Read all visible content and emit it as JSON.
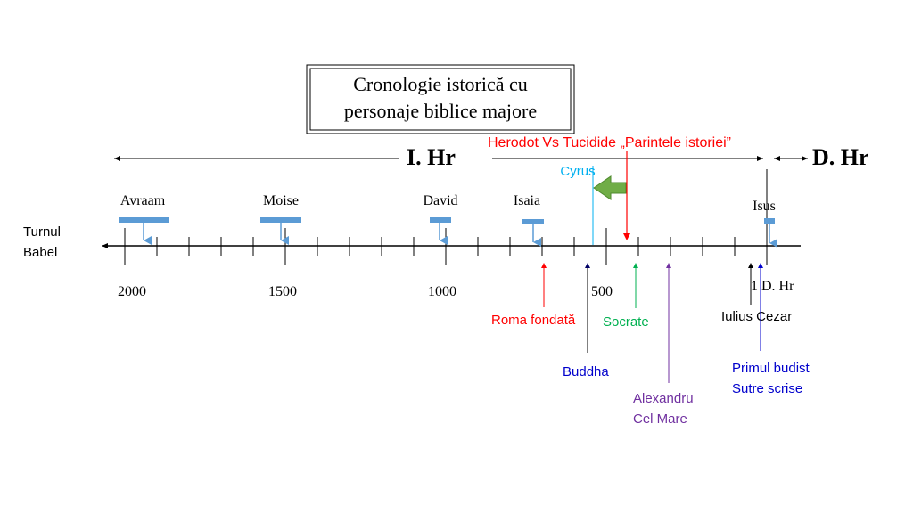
{
  "title": {
    "line1": "Cronologie istorică cu",
    "line2": "personaje biblice majore"
  },
  "era": {
    "bc": "I.   Hr",
    "ad": "D. Hr",
    "herodot": "Herodot Vs Tucidide „Parintele istoriei”"
  },
  "left_label": {
    "line1": "Turnul",
    "line2": "Babel"
  },
  "ticks": {
    "t2000": "2000",
    "t1500": "1500",
    "t1000": "1000",
    "t500": "500",
    "t1": "1 D. Hr"
  },
  "figures": {
    "avraam": "Avraam",
    "moise": "Moise",
    "david": "David",
    "isaia": "Isaia",
    "isus": "Isus"
  },
  "events": {
    "cyrus": "Cyrus",
    "roma": "Roma fondată",
    "socrate": "Socrate",
    "buddha": "Buddha",
    "alexandru_1": "Alexandru",
    "alexandru_2": "Cel Mare",
    "cezar": "Iulius Cezar",
    "budist_1": "Primul budist",
    "budist_2": "Sutre scrise"
  },
  "colors": {
    "red": "#ff0000",
    "cyan": "#00b0f0",
    "green": "#00b050",
    "blue": "#0000cc",
    "purple": "#7030a0",
    "bar": "#5b9bd5",
    "arrow_green": "#70ad47"
  }
}
